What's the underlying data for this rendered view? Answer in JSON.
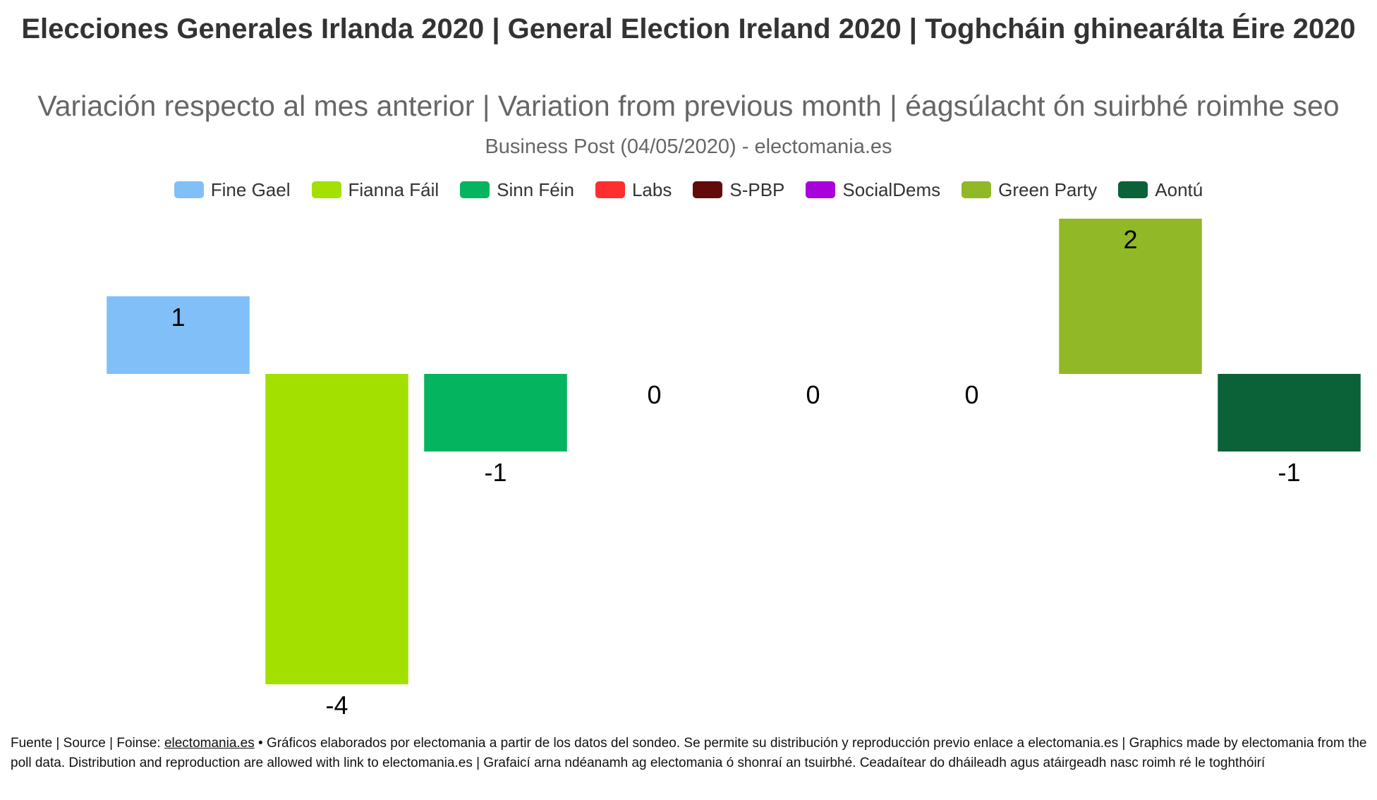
{
  "title": "Elecciones Generales Irlanda 2020 | General Election Ireland 2020 | Toghcháin ghinearálta Éire 2020",
  "subtitle": "Variación respecto al mes anterior | Variation from previous month | éagsúlacht ón suirbhé roimhe seo",
  "source_line": "Business Post (04/05/2020) - electomania.es",
  "footer": {
    "prefix": "Fuente | Source | Foinse: ",
    "link": "electomania.es",
    "text": " • Gráficos elaborados por electomania a partir de los datos del sondeo. Se permite su distribución y reproducción previo enlace a electomania.es | Graphics made by electomania from the poll data. Distribution and reproduction are allowed with link to electomania.es | Grafaicí arna ndéanamh ag electomania ó shonraí an tsuirbhé. Ceadaítear do dháileadh agus atáirgeadh nasc roimh ré le toghthóirí"
  },
  "chart_data": {
    "type": "bar",
    "title": "Elecciones Generales Irlanda 2020 | General Election Ireland 2020 | Toghcháin ghinearálta Éire 2020",
    "subtitle": "Variación respecto al mes anterior | Variation from previous month | éagsúlacht ón suirbhé roimhe seo",
    "categories": [
      "Fine Gael",
      "Fianna Fáil",
      "Sinn Féin",
      "Labs",
      "S-PBP",
      "SocialDems",
      "Green Party",
      "Aontú"
    ],
    "values": [
      1,
      -4,
      -1,
      0,
      0,
      0,
      2,
      -1
    ],
    "colors": [
      "#80bff7",
      "#a3e000",
      "#04b45f",
      "#fe2e2e",
      "#610b0b",
      "#a901db",
      "#91b826",
      "#0b6138"
    ],
    "data_labels": [
      "1",
      "-4",
      "-1",
      "0",
      "0",
      "0",
      "2",
      "-1"
    ],
    "ylim": [
      -4,
      2
    ],
    "grid": false,
    "legend_position": "top-center",
    "xlabel": "",
    "ylabel": ""
  }
}
